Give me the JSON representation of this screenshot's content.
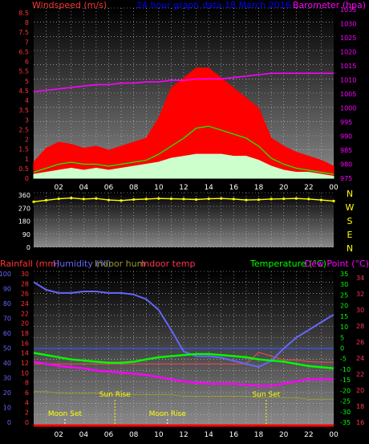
{
  "chart_data": [
    {
      "type": "area",
      "title": "24 hour graph data   18 March 2016",
      "ylabel": "Windspeed (m/s)",
      "y2label": "Barometer (hpa)",
      "ylim": [
        0,
        8.5
      ],
      "y2lim": [
        975,
        1035
      ],
      "yticks": [
        "8.5",
        "8",
        "7.5",
        "7",
        "6.5",
        "6",
        "5.5",
        "5",
        "4.5",
        "4",
        "3.5",
        "3",
        "2.5",
        "2",
        "1.5",
        "1",
        "0.5",
        "0"
      ],
      "y2ticks": [
        "1035",
        "1030",
        "1025",
        "1020",
        "1015",
        "1010",
        "1005",
        "1000",
        "995",
        "990",
        "985",
        "980",
        "975"
      ],
      "x_hours": [
        0,
        1,
        2,
        3,
        4,
        5,
        6,
        7,
        8,
        9,
        10,
        11,
        12,
        13,
        14,
        15,
        16,
        17,
        18,
        19,
        20,
        21,
        22,
        23,
        24
      ],
      "xtick_labels": [
        "02",
        "04",
        "06",
        "08",
        "10",
        "12",
        "14",
        "16",
        "18",
        "20",
        "22",
        "00"
      ],
      "series": [
        {
          "name": "Barometer (hpa)",
          "color": "#ff00ff",
          "values": [
            1005.5,
            1006,
            1006.5,
            1007,
            1007.5,
            1008,
            1008,
            1008.5,
            1008.5,
            1009,
            1009,
            1009.5,
            1009.5,
            1010,
            1010,
            1010,
            1010.5,
            1011,
            1011.5,
            1012,
            1012,
            1012,
            1012,
            1012,
            1012
          ]
        },
        {
          "name": "Gust",
          "color": "#ff0000",
          "values": [
            0.8,
            1.5,
            1.8,
            1.7,
            1.5,
            1.6,
            1.4,
            1.6,
            1.8,
            2.0,
            3.0,
            4.5,
            5.0,
            5.5,
            5.5,
            5.0,
            4.5,
            4.0,
            3.5,
            2.0,
            1.6,
            1.3,
            1.1,
            0.9,
            0.6
          ]
        },
        {
          "name": "Average",
          "color": "#00ff00",
          "values": [
            0.3,
            0.5,
            0.7,
            0.8,
            0.7,
            0.7,
            0.6,
            0.7,
            0.8,
            0.9,
            1.2,
            1.6,
            2.0,
            2.5,
            2.6,
            2.4,
            2.2,
            2.0,
            1.6,
            1.0,
            0.7,
            0.5,
            0.4,
            0.3,
            0.2
          ]
        },
        {
          "name": "Speed",
          "color": "#ccffcc",
          "values": [
            0.2,
            0.3,
            0.4,
            0.5,
            0.4,
            0.5,
            0.4,
            0.5,
            0.6,
            0.7,
            0.8,
            1.0,
            1.1,
            1.2,
            1.2,
            1.2,
            1.1,
            1.1,
            0.9,
            0.6,
            0.4,
            0.3,
            0.3,
            0.2,
            0.1
          ]
        }
      ]
    },
    {
      "type": "scatter",
      "title": "",
      "ylabel": "",
      "ylim": [
        0,
        360
      ],
      "yticks": [
        "360",
        "270",
        "180",
        "90",
        "0"
      ],
      "compass": [
        "N",
        "W",
        "S",
        "E",
        "N"
      ],
      "series": [
        {
          "name": "Wind direction",
          "color": "#ffff00",
          "values": [
            300,
            310,
            320,
            325,
            318,
            322,
            312,
            308,
            315,
            318,
            322,
            320,
            318,
            315,
            320,
            322,
            318,
            312,
            314,
            318,
            320,
            322,
            318,
            312,
            305
          ]
        }
      ]
    },
    {
      "type": "line",
      "ylabel_left": [
        "Rainfall (mm)",
        "Humidity (%)",
        "Indoor hum",
        "Indoor temp"
      ],
      "ylabel_right": [
        "Temperature (°C)",
        "Dew Point (°C)"
      ],
      "humidity_ticks": [
        "100",
        "90",
        "80",
        "70",
        "60",
        "50",
        "40",
        "30",
        "20",
        "10",
        "0"
      ],
      "rain_ticks": [
        "30",
        "28",
        "26",
        "24",
        "22",
        "20",
        "18",
        "16",
        "14",
        "12",
        "10",
        "8",
        "6",
        "4",
        "2",
        "0"
      ],
      "temp_ticks": [
        "35",
        "30",
        "25",
        "20",
        "15",
        "10",
        "5",
        "0",
        "-5",
        "-10",
        "-15",
        "-20",
        "-25",
        "-30",
        "-35"
      ],
      "indoor_ticks": [
        "34",
        "32",
        "30",
        "28",
        "26",
        "24",
        "22",
        "20",
        "18",
        "16"
      ],
      "ylim_temp": [
        -35,
        35
      ],
      "ylim_humidity": [
        0,
        100
      ],
      "annotations": {
        "sun_rise": "Sun Rise",
        "sun_set": "Sun Set",
        "moon_set": "Moon Set",
        "moon_rise": "Moon Rise"
      },
      "events": {
        "sun_rise": 6.5,
        "sun_set": 18.6,
        "moon_set": 2.5,
        "moon_rise": 10.7
      },
      "series": [
        {
          "name": "Humidity (%)",
          "color": "#6666ff",
          "values": [
            93,
            88,
            86,
            86,
            87,
            87,
            86,
            86,
            85,
            82,
            75,
            62,
            48,
            45,
            45,
            44,
            42,
            40,
            38,
            42,
            50,
            57,
            62,
            67,
            72
          ]
        },
        {
          "name": "Temperature (°C)",
          "color": "#00ff00",
          "values": [
            -2,
            -3,
            -4,
            -5,
            -5.5,
            -6,
            -6.5,
            -6.5,
            -6,
            -5,
            -4,
            -3.5,
            -3,
            -2.5,
            -2.5,
            -3,
            -3.5,
            -4,
            -5,
            -5.5,
            -6,
            -7,
            -8,
            -8.5,
            -9
          ]
        },
        {
          "name": "Dew Point (°C)",
          "color": "#ff00ff",
          "values": [
            -6,
            -7,
            -8,
            -8.5,
            -9,
            -10,
            -10.5,
            -11,
            -11.5,
            -12,
            -13,
            -14,
            -15,
            -15.5,
            -16,
            -16,
            -16,
            -16.5,
            -17,
            -17,
            -16,
            -15,
            -14,
            -14,
            -14
          ]
        },
        {
          "name": "Indoor temp",
          "color": "#ff4455",
          "values": [
            23,
            23,
            23,
            23,
            23,
            23,
            23,
            23,
            23,
            23,
            23,
            23,
            23,
            23,
            23,
            23,
            23,
            23,
            24.5,
            24,
            23.5,
            23.5,
            23.3,
            23.2,
            23.2
          ]
        },
        {
          "name": "Indoor hum",
          "color": "#999933",
          "values": [
            22,
            22,
            21,
            21,
            21,
            21,
            20,
            20,
            20,
            20,
            20,
            20,
            19,
            19,
            19,
            19,
            19,
            19,
            18,
            18,
            18,
            18,
            17,
            17,
            17
          ]
        },
        {
          "name": "Rainfall (mm)",
          "color": "#ff0000",
          "values": [
            0,
            0,
            0,
            0,
            0,
            0,
            0,
            0,
            0,
            0,
            0,
            0,
            0,
            0,
            0,
            0,
            0,
            0,
            0,
            0,
            0,
            0,
            0,
            0,
            0
          ]
        }
      ]
    }
  ],
  "colors": {
    "bg": "#000000",
    "grid": "#cccccc",
    "wind_axis": "#ff3333",
    "baro_axis": "#ff00ff",
    "title": "#0000ff",
    "direction": "#ffff00",
    "humidity_axis": "#6666ff",
    "rain_axis": "#ff3333",
    "temp_axis": "#00ff00",
    "indoor_axis": "#ff3355"
  }
}
